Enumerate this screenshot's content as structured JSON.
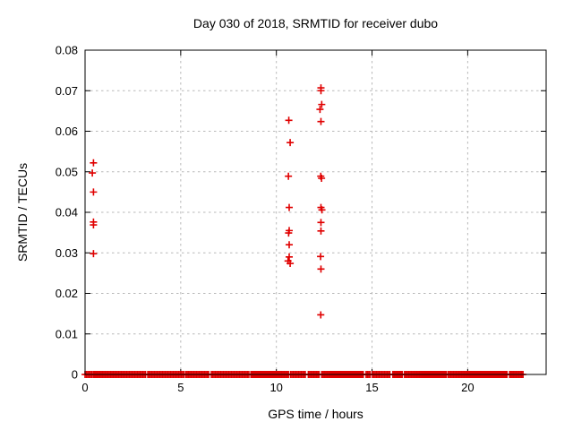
{
  "figure": {
    "background": "#ffffff",
    "text_color": "#000000",
    "border_color": "#000000",
    "grid_color": "#b8b8b8"
  },
  "chart_data": {
    "type": "scatter",
    "title": "Day 030 of 2018, SRMTID for receiver dubo",
    "xlabel": "GPS time / hours",
    "ylabel": "SRMTID / TECUs",
    "xlim": [
      0,
      24.1
    ],
    "ylim": [
      0,
      0.08
    ],
    "xticks": [
      0,
      5,
      10,
      15,
      20
    ],
    "xtick_labels": [
      "0",
      "5",
      "10",
      "15",
      "20"
    ],
    "yticks": [
      0,
      0.01,
      0.02,
      0.03,
      0.04,
      0.05,
      0.06,
      0.07,
      0.08
    ],
    "ytick_labels": [
      "0",
      "0.01",
      "0.02",
      "0.03",
      "0.04",
      "0.05",
      "0.06",
      "0.07",
      "0.08"
    ],
    "grid": true,
    "legend": "none",
    "marker": "plus",
    "marker_color": "#e00000",
    "points": [
      [
        0.44,
        0.0522
      ],
      [
        0.38,
        0.0497
      ],
      [
        0.44,
        0.045
      ],
      [
        0.44,
        0.0376
      ],
      [
        0.44,
        0.0369
      ],
      [
        0.44,
        0.0298
      ],
      [
        10.65,
        0.0627
      ],
      [
        10.72,
        0.0572
      ],
      [
        10.63,
        0.0489
      ],
      [
        10.67,
        0.0412
      ],
      [
        10.67,
        0.0355
      ],
      [
        10.64,
        0.0349
      ],
      [
        10.67,
        0.032
      ],
      [
        10.67,
        0.029
      ],
      [
        10.61,
        0.028
      ],
      [
        10.72,
        0.0274
      ],
      [
        12.33,
        0.0707
      ],
      [
        12.33,
        0.07
      ],
      [
        12.37,
        0.0666
      ],
      [
        12.28,
        0.0654
      ],
      [
        12.33,
        0.0624
      ],
      [
        12.32,
        0.0489
      ],
      [
        12.36,
        0.0484
      ],
      [
        12.33,
        0.0412
      ],
      [
        12.38,
        0.0406
      ],
      [
        12.33,
        0.0375
      ],
      [
        12.33,
        0.0354
      ],
      [
        12.31,
        0.0291
      ],
      [
        12.33,
        0.026
      ],
      [
        12.32,
        0.0147
      ]
    ],
    "zero_band_y": 0,
    "zero_band_segments": [
      [
        0.0,
        0.35
      ],
      [
        0.43,
        3.18
      ],
      [
        3.28,
        5.17
      ],
      [
        5.27,
        6.5
      ],
      [
        6.6,
        8.57
      ],
      [
        8.67,
        10.64
      ],
      [
        10.74,
        11.57
      ],
      [
        11.67,
        12.27
      ],
      [
        12.37,
        14.59
      ],
      [
        14.69,
        14.92
      ],
      [
        15.02,
        15.99
      ],
      [
        16.09,
        16.6
      ],
      [
        16.7,
        18.87
      ],
      [
        18.97,
        22.09
      ],
      [
        22.19,
        22.92
      ]
    ]
  }
}
